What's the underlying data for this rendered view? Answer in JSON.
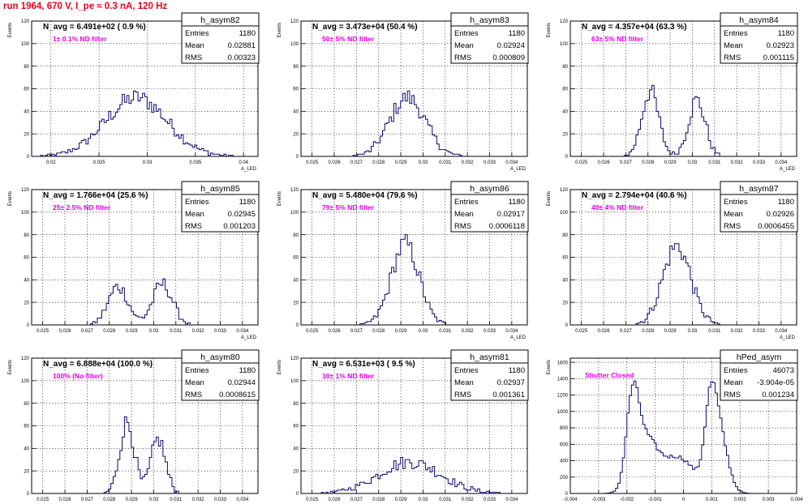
{
  "page_title": "run 1964,   670 V, I_pe ≈ 0.3 nA, 120 Hz",
  "colors": {
    "hist": "#0a0a6e",
    "nd": "#e100e1",
    "title": "#e8001c",
    "frame": "#000000"
  },
  "stat_labels": {
    "entries": "Entries",
    "mean": "Mean",
    "rms": "RMS"
  },
  "chart_data": [
    {
      "type": "bar",
      "name": "h_asym82",
      "navg": "N_avg = 6.491e+02 ( 0.9 %)",
      "nd": "1± 0.1% ND filter",
      "entries": "1180",
      "mean": "0.02881",
      "rms": "0.00323",
      "ylabel": "Events",
      "xlabel": "A_LED",
      "xlim": [
        0.018,
        0.0415
      ],
      "ylim": [
        0,
        120
      ],
      "xticks": [
        "0.02",
        "0.025",
        "0.03",
        "0.035",
        "0.04"
      ],
      "xtick_values": [
        0.02,
        0.025,
        0.03,
        0.035,
        0.04
      ],
      "yticks": [
        "0",
        "20",
        "40",
        "60",
        "80",
        "100",
        "120"
      ],
      "shape": {
        "bins": 100,
        "peaks": [
          {
            "c": 0.0289,
            "s": 0.0032,
            "a": 52
          }
        ]
      }
    },
    {
      "type": "bar",
      "name": "h_asym83",
      "navg": "N_avg = 3.473e+04 (50.4 %)",
      "nd": "50± 5% ND filter",
      "entries": "1180",
      "mean": "0.02924",
      "rms": "0.000809",
      "ylabel": "Events",
      "xlabel": "A_LED",
      "xlim": [
        0.0245,
        0.0347
      ],
      "ylim": [
        0,
        120
      ],
      "xticks": [
        "0.025",
        "0.026",
        "0.027",
        "0.028",
        "0.029",
        "0.03",
        "0.031",
        "0.032",
        "0.033",
        "0.034"
      ],
      "xtick_values": [
        0.025,
        0.026,
        0.027,
        0.028,
        0.029,
        0.03,
        0.031,
        0.032,
        0.033,
        0.034
      ],
      "yticks": [
        "0",
        "20",
        "40",
        "60",
        "80",
        "100",
        "120"
      ],
      "shape": {
        "bins": 100,
        "peaks": [
          {
            "c": 0.0293,
            "s": 0.0008,
            "a": 52
          }
        ]
      }
    },
    {
      "type": "bar",
      "name": "h_asym84",
      "navg": "N_avg = 4.357e+04 (63.3 %)",
      "nd": "63± 5% ND filter",
      "entries": "1180",
      "mean": "0.02923",
      "rms": "0.001115",
      "ylabel": "Events",
      "xlabel": "A_LED",
      "xlim": [
        0.0245,
        0.0347
      ],
      "ylim": [
        0,
        120
      ],
      "xticks": [
        "0.025",
        "0.026",
        "0.027",
        "0.028",
        "0.029",
        "0.03",
        "0.031",
        "0.032",
        "0.033",
        "0.034"
      ],
      "xtick_values": [
        0.025,
        0.026,
        0.027,
        0.028,
        0.029,
        0.03,
        0.031,
        0.032,
        0.033,
        0.034
      ],
      "yticks": [
        "0",
        "20",
        "40",
        "60",
        "80",
        "100",
        "120"
      ],
      "shape": {
        "bins": 100,
        "peaks": [
          {
            "c": 0.0281,
            "s": 0.00038,
            "a": 58
          },
          {
            "c": 0.0302,
            "s": 0.00038,
            "a": 50
          }
        ]
      }
    },
    {
      "type": "bar",
      "name": "h_asym85",
      "navg": "N_avg = 1.766e+04 (25.6 %)",
      "nd": "25± 2.5% ND filter",
      "entries": "1180",
      "mean": "0.02945",
      "rms": "0.001203",
      "ylabel": "Events",
      "xlabel": "A_LED",
      "xlim": [
        0.0245,
        0.0347
      ],
      "ylim": [
        0,
        120
      ],
      "xticks": [
        "0.025",
        "0.026",
        "0.027",
        "0.028",
        "0.029",
        "0.03",
        "0.031",
        "0.032",
        "0.033",
        "0.034"
      ],
      "xtick_values": [
        0.025,
        0.026,
        0.027,
        0.028,
        0.029,
        0.03,
        0.031,
        0.032,
        0.033,
        0.034
      ],
      "yticks": [
        "0",
        "20",
        "40",
        "60",
        "80",
        "100",
        "120"
      ],
      "shape": {
        "bins": 100,
        "peaks": [
          {
            "c": 0.0284,
            "s": 0.00045,
            "a": 34
          },
          {
            "c": 0.0304,
            "s": 0.00045,
            "a": 36
          }
        ]
      }
    },
    {
      "type": "bar",
      "name": "h_asym86",
      "navg": "N_avg = 5.480e+04 (79.6 %)",
      "nd": "79± 5% ND filter",
      "entries": "1180",
      "mean": "0.02917",
      "rms": "0.0006118",
      "ylabel": "Events",
      "xlabel": "A_LED",
      "xlim": [
        0.0245,
        0.0347
      ],
      "ylim": [
        0,
        120
      ],
      "xticks": [
        "0.025",
        "0.026",
        "0.027",
        "0.028",
        "0.029",
        "0.03",
        "0.031",
        "0.032",
        "0.033",
        "0.034"
      ],
      "xtick_values": [
        0.025,
        0.026,
        0.027,
        0.028,
        0.029,
        0.03,
        0.031,
        0.032,
        0.033,
        0.034
      ],
      "yticks": [
        "0",
        "20",
        "40",
        "60",
        "80",
        "100",
        "120"
      ],
      "shape": {
        "bins": 100,
        "peaks": [
          {
            "c": 0.0292,
            "s": 0.00062,
            "a": 72
          }
        ]
      }
    },
    {
      "type": "bar",
      "name": "h_asym87",
      "navg": "N_avg = 2.794e+04 (40.6 %)",
      "nd": "40± 4% ND filter",
      "entries": "1180",
      "mean": "0.02926",
      "rms": "0.0006455",
      "ylabel": "Events",
      "xlabel": "A_LED",
      "xlim": [
        0.0245,
        0.0347
      ],
      "ylim": [
        0,
        120
      ],
      "xticks": [
        "0.025",
        "0.026",
        "0.027",
        "0.028",
        "0.029",
        "0.03",
        "0.031",
        "0.032",
        "0.033",
        "0.034"
      ],
      "xtick_values": [
        0.025,
        0.026,
        0.027,
        0.028,
        0.029,
        0.03,
        0.031,
        0.032,
        0.033,
        0.034
      ],
      "yticks": [
        "0",
        "20",
        "40",
        "60",
        "80",
        "100",
        "120"
      ],
      "shape": {
        "bins": 100,
        "peaks": [
          {
            "c": 0.0293,
            "s": 0.00063,
            "a": 70
          }
        ]
      }
    },
    {
      "type": "bar",
      "name": "h_asym80",
      "navg": "N_avg = 6.888e+04 (100.0 %)",
      "nd": "100% (No filter)",
      "entries": "1180",
      "mean": "0.02944",
      "rms": "0.0008615",
      "ylabel": "Events",
      "xlabel": "A_LED",
      "xlim": [
        0.0245,
        0.0347
      ],
      "ylim": [
        0,
        120
      ],
      "xticks": [
        "0.025",
        "0.026",
        "0.027",
        "0.028",
        "0.029",
        "0.03",
        "0.031",
        "0.032",
        "0.033",
        "0.034"
      ],
      "xtick_values": [
        0.025,
        0.026,
        0.027,
        0.028,
        0.029,
        0.03,
        0.031,
        0.032,
        0.033,
        0.034
      ],
      "yticks": [
        "0",
        "20",
        "40",
        "60",
        "80",
        "100",
        "120"
      ],
      "shape": {
        "bins": 100,
        "peaks": [
          {
            "c": 0.0288,
            "s": 0.00033,
            "a": 63
          },
          {
            "c": 0.0302,
            "s": 0.00033,
            "a": 48
          }
        ]
      }
    },
    {
      "type": "bar",
      "name": "h_asym81",
      "navg": "N_avg = 6.531e+03 ( 9.5 %)",
      "nd": "10± 1% ND filter",
      "entries": "1180",
      "mean": "0.02937",
      "rms": "0.001361",
      "ylabel": "Events",
      "xlabel": "A_LED",
      "xlim": [
        0.0245,
        0.0347
      ],
      "ylim": [
        0,
        120
      ],
      "xticks": [
        "0.025",
        "0.026",
        "0.027",
        "0.028",
        "0.029",
        "0.03",
        "0.031",
        "0.032",
        "0.033",
        "0.034"
      ],
      "xtick_values": [
        0.025,
        0.026,
        0.027,
        0.028,
        0.029,
        0.03,
        0.031,
        0.032,
        0.033,
        0.034
      ],
      "yticks": [
        "0",
        "20",
        "40",
        "60",
        "80",
        "100",
        "120"
      ],
      "shape": {
        "bins": 100,
        "peaks": [
          {
            "c": 0.0294,
            "s": 0.0014,
            "a": 28
          }
        ]
      }
    },
    {
      "type": "bar",
      "name": "hPed_asym",
      "navg": "",
      "nd": "Shutter Closed",
      "entries": "46073",
      "mean": "-3.904e-05",
      "rms": "0.001234",
      "ylabel": "Events",
      "xlabel": "",
      "xlim": [
        -0.004,
        0.004
      ],
      "ylim": [
        0,
        1650
      ],
      "xticks": [
        "-0.004",
        "-0.003",
        "-0.002",
        "-0.001",
        "0",
        "0.001",
        "0.002",
        "0.003",
        "0.004"
      ],
      "xtick_values": [
        -0.004,
        -0.003,
        -0.002,
        -0.001,
        0,
        0.001,
        0.002,
        0.003,
        0.004
      ],
      "yticks": [
        "0",
        "200",
        "400",
        "600",
        "800",
        "1000",
        "1200",
        "1400",
        "1600"
      ],
      "shape": {
        "bins": 100,
        "peaks": [
          {
            "c": -0.0018,
            "s": 0.00022,
            "a": 1000
          },
          {
            "c": -0.00135,
            "s": 0.0004,
            "a": 600
          },
          {
            "c": -0.0002,
            "s": 0.0006,
            "a": 440
          },
          {
            "c": 0.00095,
            "s": 0.0002,
            "a": 800
          },
          {
            "c": 0.00125,
            "s": 0.0003,
            "a": 750
          }
        ]
      }
    }
  ]
}
